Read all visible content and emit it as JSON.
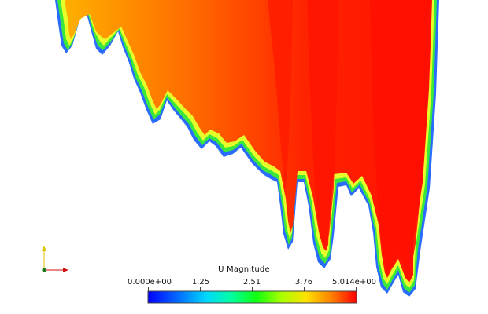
{
  "colorbar": {
    "title": "U Magnitude",
    "ticks": [
      {
        "label": "0.000e+00",
        "value": 0.0
      },
      {
        "label": "1.25",
        "value": 1.25
      },
      {
        "label": "2.51",
        "value": 2.51
      },
      {
        "label": "3.76",
        "value": 3.76
      },
      {
        "label": "5.014e+00",
        "value": 5.014
      }
    ],
    "range": [
      0.0,
      5.014
    ],
    "colormap": [
      "#0000ff",
      "#00a8ff",
      "#00ffc0",
      "#00ff30",
      "#a8ff00",
      "#ffd000",
      "#ff8000",
      "#ff0000"
    ]
  },
  "field": {
    "colors": {
      "edge_blue": "#2a6cff",
      "edge_green": "#39e83a",
      "edge_yellow": "#e6ff2a",
      "core": "#ff1a00",
      "orange": "#ff8a00"
    }
  },
  "axes": {
    "x_color": "#d01010",
    "y_color": "#e0c000",
    "origin_color": "#1a7a1a"
  }
}
